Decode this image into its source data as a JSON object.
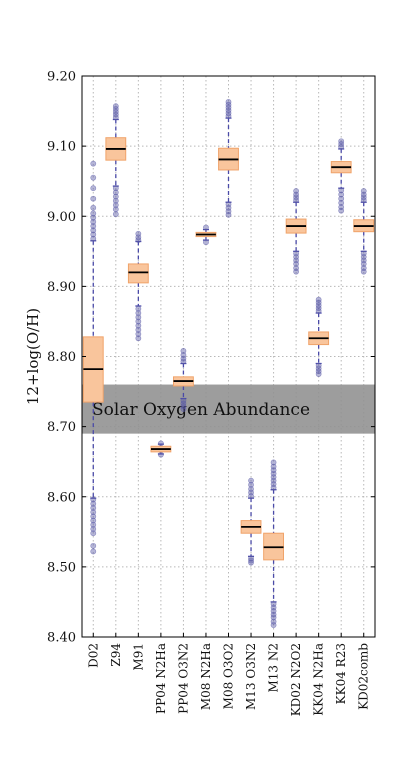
{
  "chart_data": {
    "type": "box",
    "ylabel": "12+log(O/H)",
    "ylim": [
      8.4,
      9.2
    ],
    "yticks": [
      "8.40",
      "8.50",
      "8.60",
      "8.70",
      "8.80",
      "8.90",
      "9.00",
      "9.10",
      "9.20"
    ],
    "grid": true,
    "band": {
      "label": "Solar Oxygen Abundance",
      "low": 8.69,
      "high": 8.76
    },
    "categories": [
      "D02",
      "Z94",
      "M91",
      "PP04 N2Ha",
      "PP04 O3N2",
      "M08 N2Ha",
      "M08 O3O2",
      "M13 O3N2",
      "M13 N2",
      "KD02 N2O2",
      "KK04 N2Ha",
      "KK04 R23",
      "KD02comb"
    ],
    "boxes": [
      {
        "q1": 8.735,
        "median": 8.782,
        "q3": 8.828,
        "whisker_low": 8.598,
        "whisker_high": 8.965,
        "outliers_low": [
          8.596,
          8.59,
          8.584,
          8.578,
          8.572,
          8.566,
          8.56,
          8.554,
          8.548,
          8.53,
          8.522
        ],
        "outliers_high": [
          8.968,
          8.974,
          8.98,
          8.986,
          8.992,
          8.998,
          9.004,
          9.012,
          9.025,
          9.04,
          9.055,
          9.075
        ]
      },
      {
        "q1": 9.08,
        "median": 9.096,
        "q3": 9.112,
        "whisker_low": 9.043,
        "whisker_high": 9.138,
        "outliers_low": [
          9.04,
          9.034,
          9.028,
          9.022,
          9.016,
          9.01,
          9.003
        ],
        "outliers_high": [
          9.141,
          9.145,
          9.149,
          9.153,
          9.157
        ]
      },
      {
        "q1": 8.905,
        "median": 8.92,
        "q3": 8.932,
        "whisker_low": 8.872,
        "whisker_high": 8.964,
        "outliers_low": [
          8.868,
          8.862,
          8.856,
          8.85,
          8.844,
          8.838,
          8.832,
          8.826
        ],
        "outliers_high": [
          8.966,
          8.97,
          8.975
        ]
      },
      {
        "q1": 8.664,
        "median": 8.668,
        "q3": 8.672,
        "whisker_low": 8.661,
        "whisker_high": 8.675,
        "outliers_low": [
          8.66
        ],
        "outliers_high": [
          8.676
        ]
      },
      {
        "q1": 8.758,
        "median": 8.765,
        "q3": 8.771,
        "whisker_low": 8.74,
        "whisker_high": 8.79,
        "outliers_low": [
          8.737,
          8.733,
          8.729,
          8.725
        ],
        "outliers_high": [
          8.793,
          8.797,
          8.802,
          8.808
        ]
      },
      {
        "q1": 8.971,
        "median": 8.974,
        "q3": 8.977,
        "whisker_low": 8.966,
        "whisker_high": 8.981,
        "outliers_low": [
          8.963
        ],
        "outliers_high": [
          8.984
        ]
      },
      {
        "q1": 9.066,
        "median": 9.081,
        "q3": 9.097,
        "whisker_low": 9.02,
        "whisker_high": 9.14,
        "outliers_low": [
          9.017,
          9.012,
          9.007,
          9.002
        ],
        "outliers_high": [
          9.143,
          9.147,
          9.151,
          9.155,
          9.159,
          9.163
        ]
      },
      {
        "q1": 8.548,
        "median": 8.557,
        "q3": 8.566,
        "whisker_low": 8.515,
        "whisker_high": 8.598,
        "outliers_low": [
          8.512,
          8.509,
          8.506
        ],
        "outliers_high": [
          8.601,
          8.606,
          8.611,
          8.617,
          8.623
        ]
      },
      {
        "q1": 8.51,
        "median": 8.528,
        "q3": 8.548,
        "whisker_low": 8.45,
        "whisker_high": 8.61,
        "outliers_low": [
          8.447,
          8.442,
          8.437,
          8.432,
          8.428,
          8.422,
          8.417
        ],
        "outliers_high": [
          8.613,
          8.618,
          8.623,
          8.628,
          8.633,
          8.638,
          8.643,
          8.649
        ]
      },
      {
        "q1": 8.976,
        "median": 8.986,
        "q3": 8.996,
        "whisker_low": 8.95,
        "whisker_high": 9.02,
        "outliers_low": [
          8.947,
          8.942,
          8.937,
          8.932,
          8.926,
          8.921
        ],
        "outliers_high": [
          9.023,
          9.027,
          9.031,
          9.036
        ]
      },
      {
        "q1": 8.817,
        "median": 8.826,
        "q3": 8.835,
        "whisker_low": 8.79,
        "whisker_high": 8.862,
        "outliers_low": [
          8.787,
          8.783,
          8.779,
          8.775
        ],
        "outliers_high": [
          8.865,
          8.869,
          8.873,
          8.877,
          8.881
        ]
      },
      {
        "q1": 9.062,
        "median": 9.07,
        "q3": 9.078,
        "whisker_low": 9.04,
        "whisker_high": 9.096,
        "outliers_low": [
          9.037,
          9.031,
          9.025,
          9.019,
          9.013,
          9.008
        ],
        "outliers_high": [
          9.099,
          9.103,
          9.107
        ]
      },
      {
        "q1": 8.978,
        "median": 8.986,
        "q3": 8.995,
        "whisker_low": 8.95,
        "whisker_high": 9.02,
        "outliers_low": [
          8.947,
          8.942,
          8.937,
          8.932,
          8.926,
          8.921
        ],
        "outliers_high": [
          9.023,
          9.027,
          9.031,
          9.036
        ]
      }
    ],
    "colors": {
      "box_fill": "#f9c59c",
      "box_edge": "#f0a36a",
      "median": "#000000",
      "whisker": "#4a4aa8",
      "outlier": "#5a5aa6",
      "band_fill": "#8f8f8f",
      "grid": "#b8b8b8"
    }
  }
}
